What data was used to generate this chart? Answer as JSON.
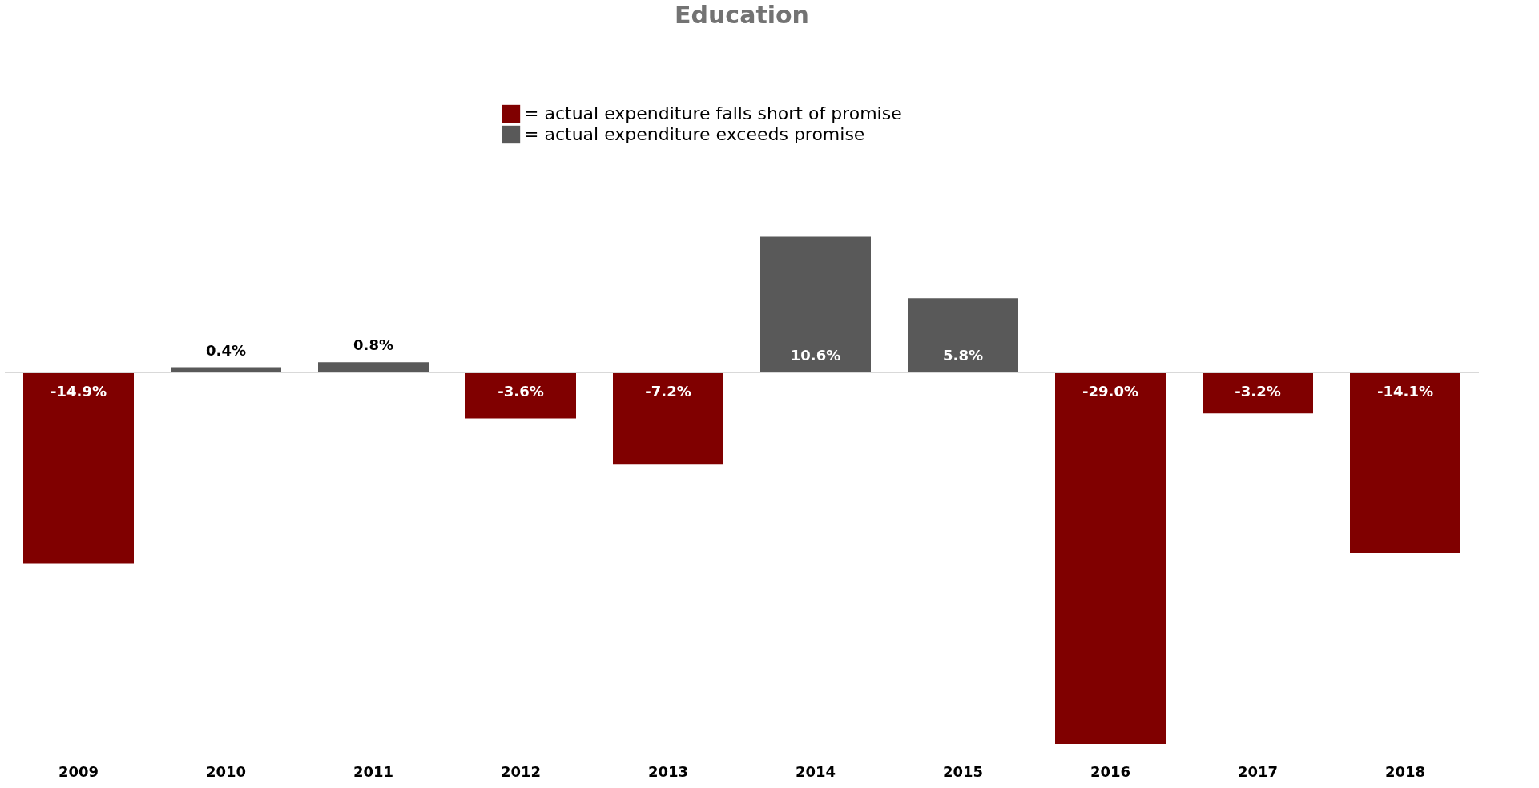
{
  "chart_data": {
    "type": "bar",
    "title": "Education",
    "categories": [
      "2009",
      "2010",
      "2011",
      "2012",
      "2013",
      "2014",
      "2015",
      "2016",
      "2017",
      "2018"
    ],
    "series": [
      {
        "name": "= actual expenditure falls short of promise",
        "color": "#800000",
        "values": [
          -14.9,
          null,
          null,
          -3.6,
          -7.2,
          null,
          null,
          -29.0,
          -3.2,
          -14.1
        ],
        "value_labels": [
          "-14.9%",
          null,
          null,
          "-3.6%",
          "-7.2%",
          null,
          null,
          "-29.0%",
          "-3.2%",
          "-14.1%"
        ]
      },
      {
        "name": "= actual expenditure exceeds promise",
        "color": "#595959",
        "values": [
          null,
          0.4,
          0.8,
          null,
          null,
          10.6,
          5.8,
          null,
          null,
          null
        ],
        "value_labels": [
          null,
          "0.4%",
          "0.8%",
          null,
          null,
          "10.6%",
          "5.8%",
          null,
          null,
          null
        ]
      }
    ],
    "legend": "top"
  }
}
